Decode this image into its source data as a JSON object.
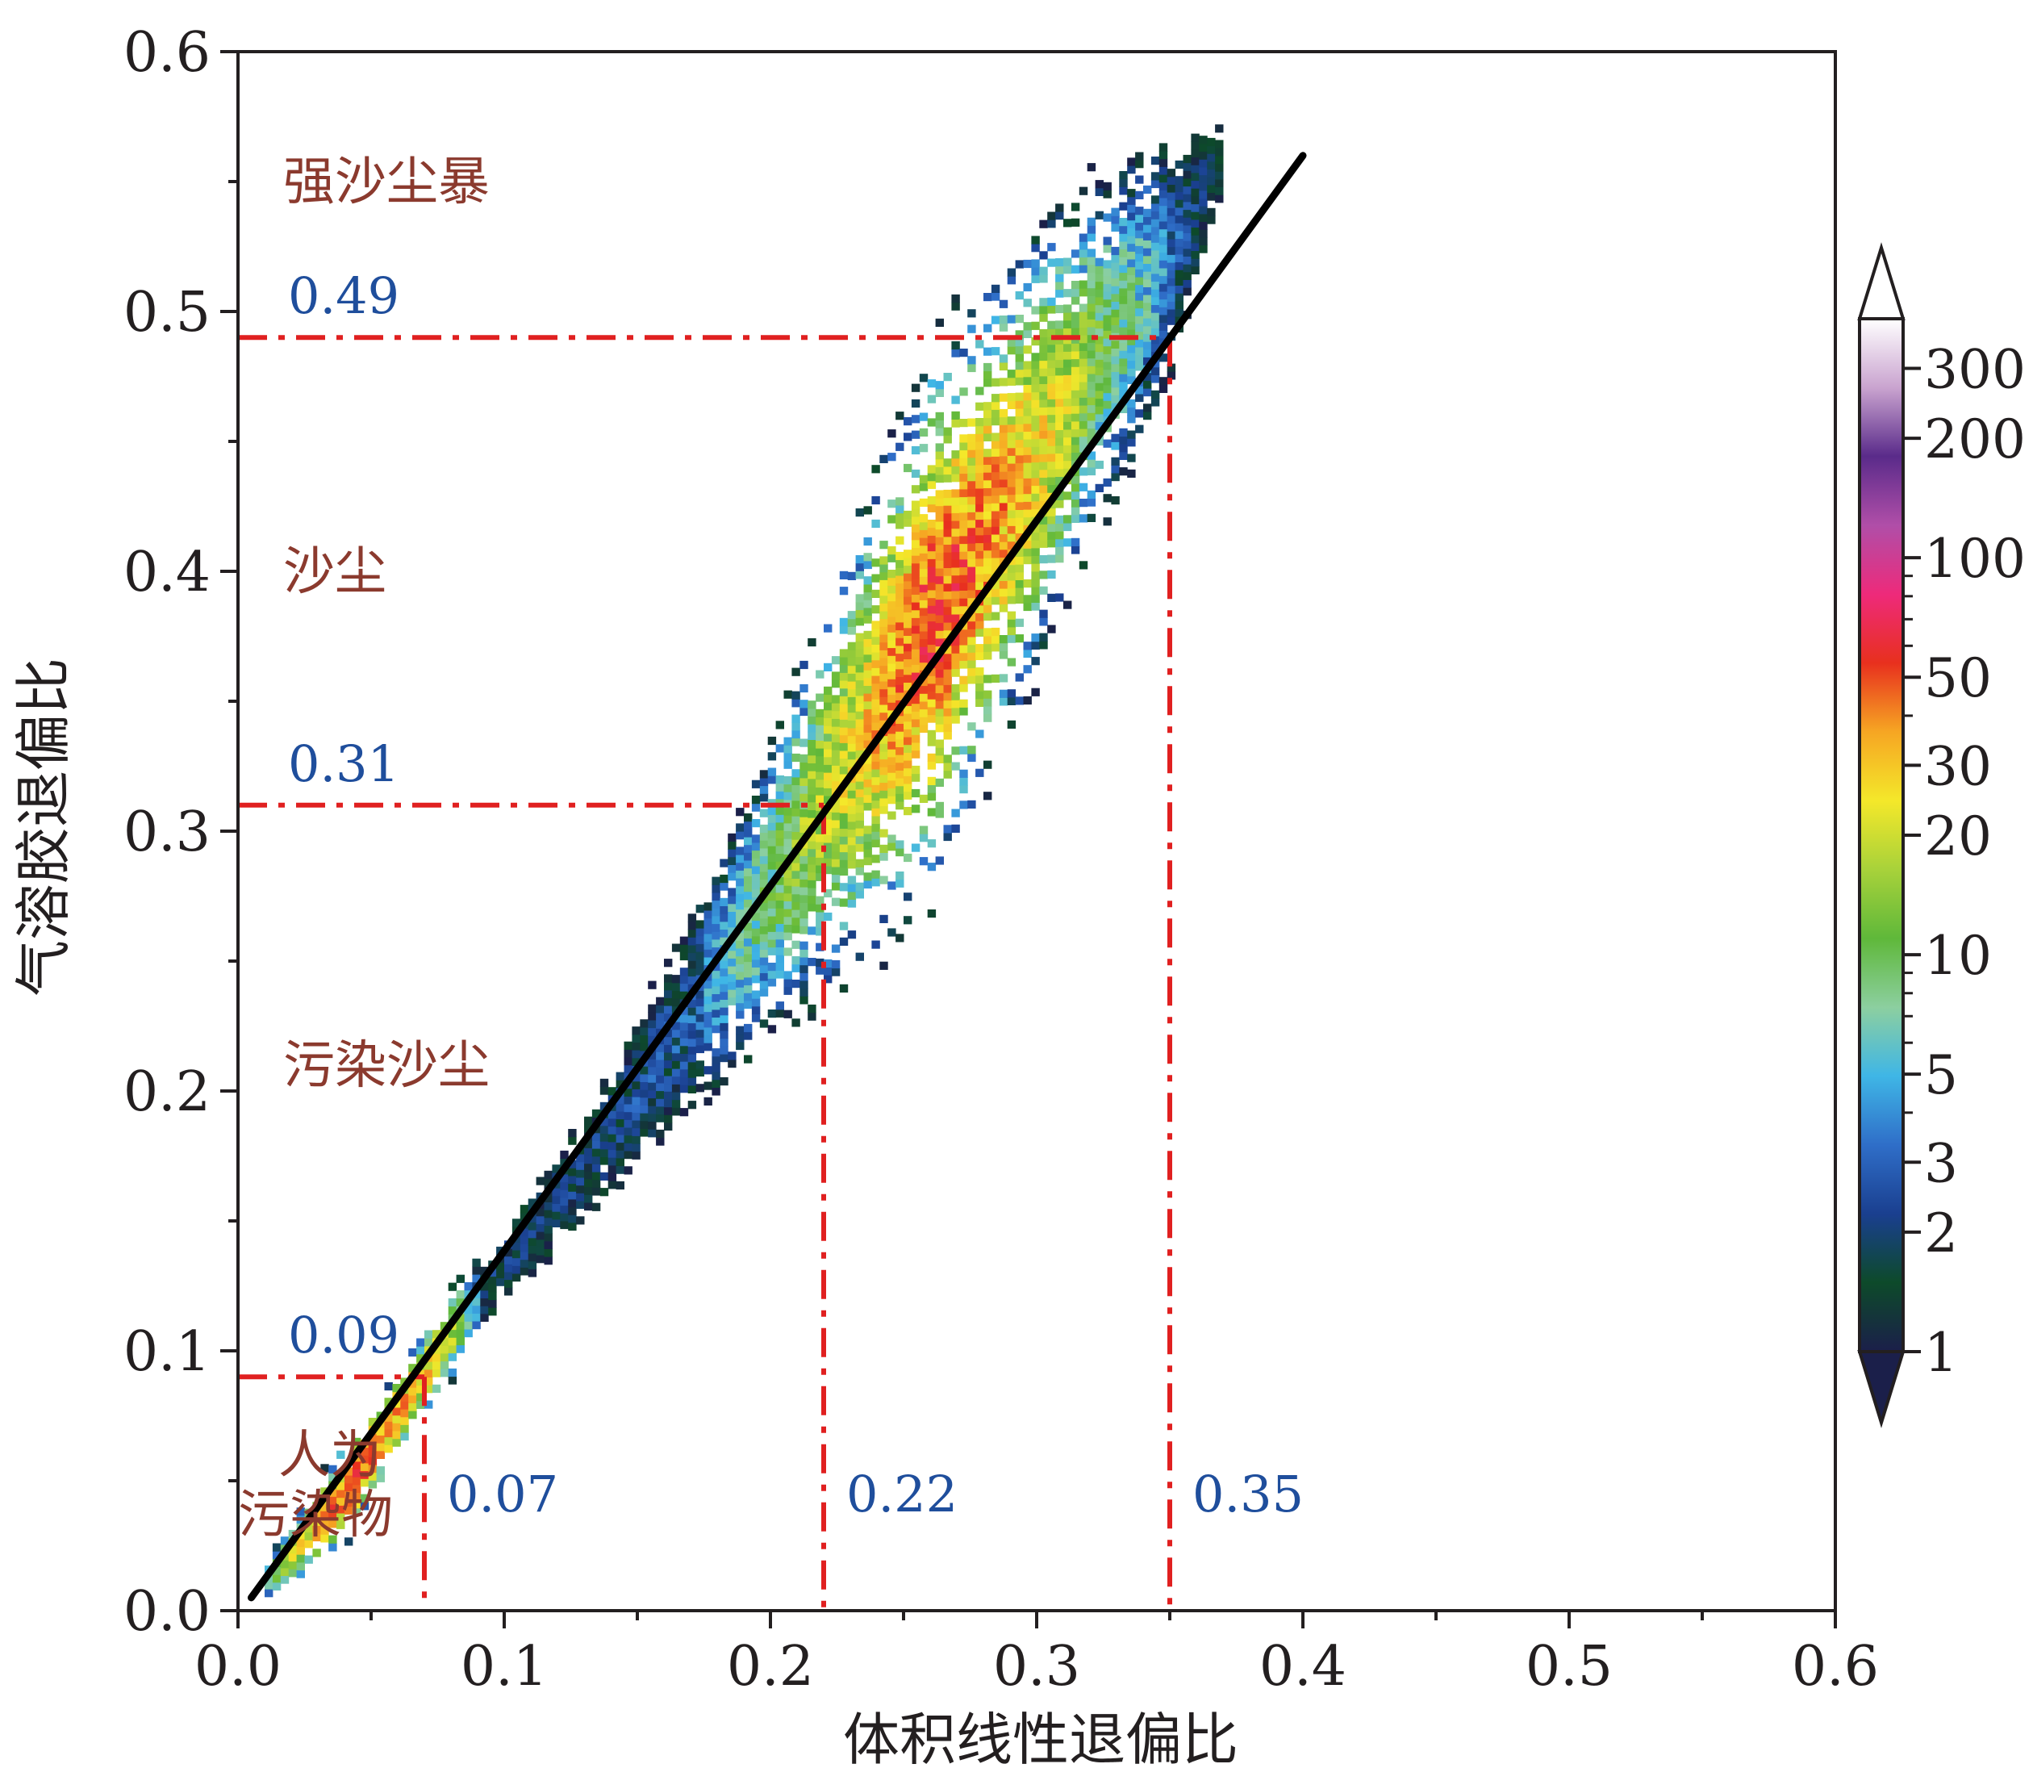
{
  "chart_data": {
    "type": "heatmap",
    "xlabel": "体积线性退偏比",
    "ylabel": "气溶胶退偏比",
    "xlim": [
      0.0,
      0.6
    ],
    "ylim": [
      0.0,
      0.6
    ],
    "xticks": [
      "0.0",
      "0.1",
      "0.2",
      "0.3",
      "0.4",
      "0.5",
      "0.6"
    ],
    "yticks": [
      "0.0",
      "0.1",
      "0.2",
      "0.3",
      "0.4",
      "0.5",
      "0.6"
    ],
    "xtick_values": [
      0.0,
      0.1,
      0.2,
      0.3,
      0.4,
      0.5,
      0.6
    ],
    "ytick_values": [
      0.0,
      0.1,
      0.2,
      0.3,
      0.4,
      0.5,
      0.6
    ],
    "grid": false,
    "fit_line": {
      "x": [
        0.005,
        0.4
      ],
      "y": [
        0.005,
        0.56
      ],
      "color": "#000000"
    },
    "density_ridge": [
      {
        "x": 0.01,
        "y": 0.01,
        "halfwidth": 0.006,
        "level": 6
      },
      {
        "x": 0.04,
        "y": 0.045,
        "halfwidth": 0.01,
        "level": 50
      },
      {
        "x": 0.065,
        "y": 0.085,
        "halfwidth": 0.008,
        "level": 35
      },
      {
        "x": 0.09,
        "y": 0.12,
        "halfwidth": 0.012,
        "level": 2
      },
      {
        "x": 0.13,
        "y": 0.17,
        "halfwidth": 0.02,
        "level": 2
      },
      {
        "x": 0.17,
        "y": 0.23,
        "halfwidth": 0.03,
        "level": 3
      },
      {
        "x": 0.2,
        "y": 0.28,
        "halfwidth": 0.035,
        "level": 10
      },
      {
        "x": 0.23,
        "y": 0.33,
        "halfwidth": 0.045,
        "level": 25
      },
      {
        "x": 0.26,
        "y": 0.38,
        "halfwidth": 0.05,
        "level": 55
      },
      {
        "x": 0.29,
        "y": 0.43,
        "halfwidth": 0.045,
        "level": 35
      },
      {
        "x": 0.32,
        "y": 0.48,
        "halfwidth": 0.04,
        "level": 12
      },
      {
        "x": 0.35,
        "y": 0.52,
        "halfwidth": 0.035,
        "level": 3
      },
      {
        "x": 0.37,
        "y": 0.56,
        "halfwidth": 0.02,
        "level": 1
      }
    ],
    "thresholds": [
      {
        "y": 0.09,
        "x": 0.07,
        "y_label": "0.09",
        "x_label": "0.07"
      },
      {
        "y": 0.31,
        "x": 0.22,
        "y_label": "0.31",
        "x_label": "0.22"
      },
      {
        "y": 0.49,
        "x": 0.35,
        "y_label": "0.49",
        "x_label": "0.35"
      }
    ],
    "threshold_color": "#e02020",
    "regions": [
      {
        "label": "强沙尘暴",
        "y": 0.55
      },
      {
        "label": "沙尘",
        "y": 0.4
      },
      {
        "label": "污染沙尘",
        "y": 0.21
      },
      {
        "label_line1": "人为",
        "label_line2": "污染物",
        "y": 0.06
      }
    ],
    "colorbar": {
      "scale": "log",
      "range": [
        1,
        400
      ],
      "extend": "both",
      "tick_values": [
        1,
        2,
        3,
        5,
        10,
        20,
        30,
        50,
        100,
        200,
        300
      ],
      "tick_labels": [
        "1",
        "2",
        "3",
        "5",
        "10",
        "20",
        "30",
        "50",
        "100",
        "200",
        "300"
      ],
      "colors": [
        "#1b1f4a",
        "#0d4a2a",
        "#1a3f8f",
        "#2f6ec8",
        "#3fb6e6",
        "#8ccfa0",
        "#5fb83a",
        "#a8d23a",
        "#f4e82a",
        "#f6a623",
        "#e8301e",
        "#ee2a7a",
        "#b04ea8",
        "#5a2b8a",
        "#c9a3cf",
        "#ffffff"
      ]
    }
  }
}
